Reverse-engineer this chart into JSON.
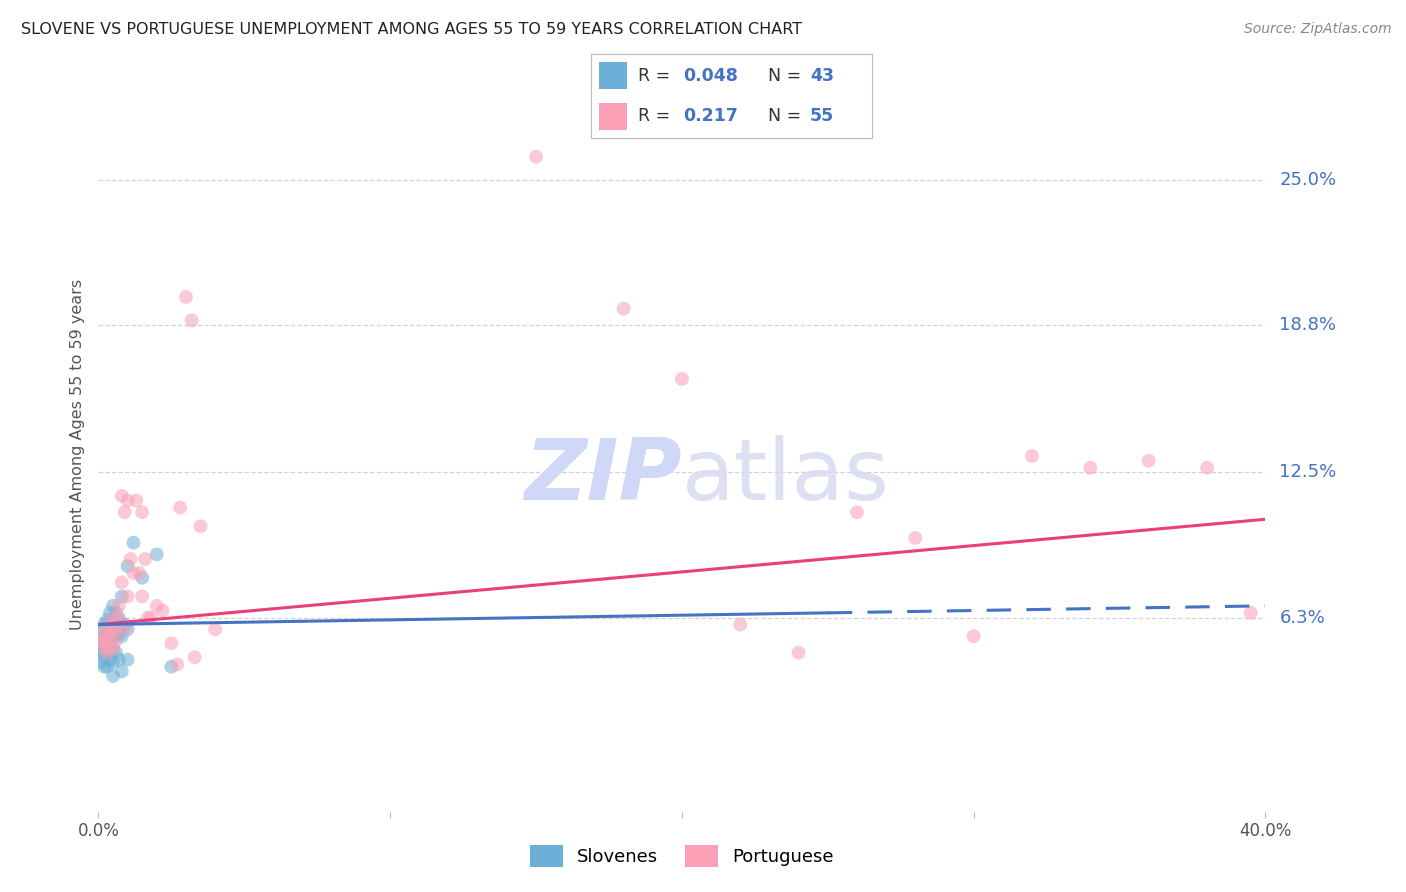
{
  "title": "SLOVENE VS PORTUGUESE UNEMPLOYMENT AMONG AGES 55 TO 59 YEARS CORRELATION CHART",
  "source": "Source: ZipAtlas.com",
  "ylabel": "Unemployment Among Ages 55 to 59 years",
  "ytick_labels": [
    "6.3%",
    "12.5%",
    "18.8%",
    "25.0%"
  ],
  "ytick_values": [
    0.063,
    0.125,
    0.188,
    0.25
  ],
  "slovene_color": "#6baed6",
  "portuguese_color": "#fa9fb5",
  "slovene_line_color": "#4472c4",
  "portuguese_line_color": "#e8407a",
  "background_color": "#ffffff",
  "grid_color": "#cccccc",
  "xlim": [
    0.0,
    0.4
  ],
  "ylim": [
    -0.02,
    0.285
  ],
  "R_slovene": 0.048,
  "N_slovene": 43,
  "R_portuguese": 0.217,
  "N_portuguese": 55,
  "slovene_trend": [
    0.06,
    0.068
  ],
  "portuguese_trend": [
    0.06,
    0.105
  ],
  "slovene_x": [
    0.0,
    0.0,
    0.001,
    0.001,
    0.001,
    0.002,
    0.002,
    0.002,
    0.002,
    0.002,
    0.003,
    0.003,
    0.003,
    0.003,
    0.003,
    0.004,
    0.004,
    0.004,
    0.004,
    0.004,
    0.005,
    0.005,
    0.005,
    0.005,
    0.005,
    0.005,
    0.006,
    0.006,
    0.006,
    0.007,
    0.007,
    0.007,
    0.008,
    0.008,
    0.008,
    0.009,
    0.01,
    0.01,
    0.01,
    0.012,
    0.015,
    0.02,
    0.025
  ],
  "slovene_y": [
    0.053,
    0.05,
    0.058,
    0.048,
    0.044,
    0.06,
    0.055,
    0.05,
    0.046,
    0.042,
    0.062,
    0.057,
    0.052,
    0.048,
    0.042,
    0.065,
    0.06,
    0.055,
    0.05,
    0.045,
    0.068,
    0.062,
    0.056,
    0.05,
    0.044,
    0.038,
    0.065,
    0.055,
    0.048,
    0.062,
    0.056,
    0.045,
    0.072,
    0.055,
    0.04,
    0.06,
    0.085,
    0.058,
    0.045,
    0.095,
    0.08,
    0.09,
    0.042
  ],
  "portuguese_x": [
    0.0,
    0.001,
    0.002,
    0.002,
    0.003,
    0.003,
    0.003,
    0.004,
    0.004,
    0.004,
    0.005,
    0.005,
    0.005,
    0.006,
    0.006,
    0.007,
    0.007,
    0.008,
    0.008,
    0.009,
    0.009,
    0.01,
    0.01,
    0.011,
    0.012,
    0.013,
    0.014,
    0.015,
    0.015,
    0.016,
    0.017,
    0.018,
    0.02,
    0.022,
    0.025,
    0.027,
    0.028,
    0.03,
    0.032,
    0.033,
    0.035,
    0.04,
    0.15,
    0.18,
    0.2,
    0.22,
    0.24,
    0.26,
    0.28,
    0.3,
    0.32,
    0.34,
    0.36,
    0.38,
    0.395
  ],
  "portuguese_y": [
    0.053,
    0.053,
    0.056,
    0.05,
    0.058,
    0.053,
    0.048,
    0.06,
    0.056,
    0.05,
    0.063,
    0.057,
    0.05,
    0.058,
    0.053,
    0.068,
    0.063,
    0.115,
    0.078,
    0.108,
    0.058,
    0.113,
    0.072,
    0.088,
    0.082,
    0.113,
    0.082,
    0.108,
    0.072,
    0.088,
    0.063,
    0.063,
    0.068,
    0.066,
    0.052,
    0.043,
    0.11,
    0.2,
    0.19,
    0.046,
    0.102,
    0.058,
    0.26,
    0.195,
    0.165,
    0.06,
    0.048,
    0.108,
    0.097,
    0.055,
    0.132,
    0.127,
    0.13,
    0.127,
    0.065
  ]
}
